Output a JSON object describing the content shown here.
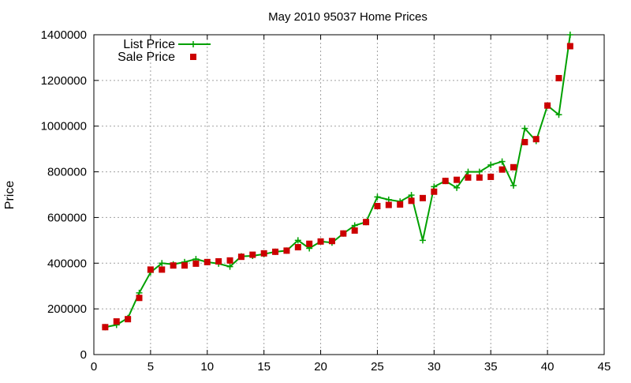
{
  "chart_data": {
    "type": "line",
    "title": "May 2010 95037 Home Prices",
    "xlabel": "",
    "ylabel": "Price",
    "xlim": [
      0,
      45
    ],
    "ylim": [
      0,
      1400000
    ],
    "x_ticks": [
      0,
      5,
      10,
      15,
      20,
      25,
      30,
      35,
      40,
      45
    ],
    "y_ticks": [
      0,
      200000,
      400000,
      600000,
      800000,
      1000000,
      1200000,
      1400000
    ],
    "grid": true,
    "legend_position": "top-left",
    "series": [
      {
        "name": "List Price",
        "style": "line-with-plus-markers",
        "color": "#00a000",
        "x": [
          1,
          2,
          3,
          4,
          5,
          6,
          7,
          8,
          9,
          10,
          11,
          12,
          13,
          14,
          15,
          16,
          17,
          18,
          19,
          20,
          21,
          22,
          23,
          24,
          25,
          26,
          27,
          28,
          29,
          30,
          31,
          32,
          33,
          34,
          35,
          36,
          37,
          38,
          39,
          40,
          41,
          42
        ],
        "values": [
          120000,
          130000,
          160000,
          270000,
          360000,
          400000,
          395000,
          405000,
          418000,
          405000,
          398000,
          385000,
          430000,
          432000,
          440000,
          450000,
          455000,
          500000,
          465000,
          495000,
          490000,
          530000,
          565000,
          580000,
          690000,
          678000,
          670000,
          698000,
          500000,
          735000,
          760000,
          730000,
          800000,
          800000,
          830000,
          845000,
          740000,
          990000,
          935000,
          1090000,
          1050000,
          1400000
        ]
      },
      {
        "name": "Sale Price",
        "style": "square-points",
        "color": "#cc0000",
        "x": [
          1,
          2,
          3,
          4,
          5,
          6,
          7,
          8,
          9,
          10,
          11,
          12,
          13,
          14,
          15,
          16,
          17,
          18,
          19,
          20,
          21,
          22,
          23,
          24,
          25,
          26,
          27,
          28,
          29,
          30,
          31,
          32,
          33,
          34,
          35,
          36,
          37,
          38,
          39,
          40,
          41,
          42
        ],
        "values": [
          120000,
          145000,
          155000,
          248000,
          372000,
          372000,
          390000,
          390000,
          398000,
          405000,
          408000,
          412000,
          428000,
          437000,
          443000,
          450000,
          455000,
          470000,
          485000,
          495000,
          497000,
          530000,
          543000,
          580000,
          650000,
          655000,
          657000,
          673000,
          685000,
          713000,
          760000,
          765000,
          775000,
          775000,
          778000,
          810000,
          820000,
          930000,
          943000,
          1090000,
          1210000,
          1350000
        ]
      }
    ]
  }
}
